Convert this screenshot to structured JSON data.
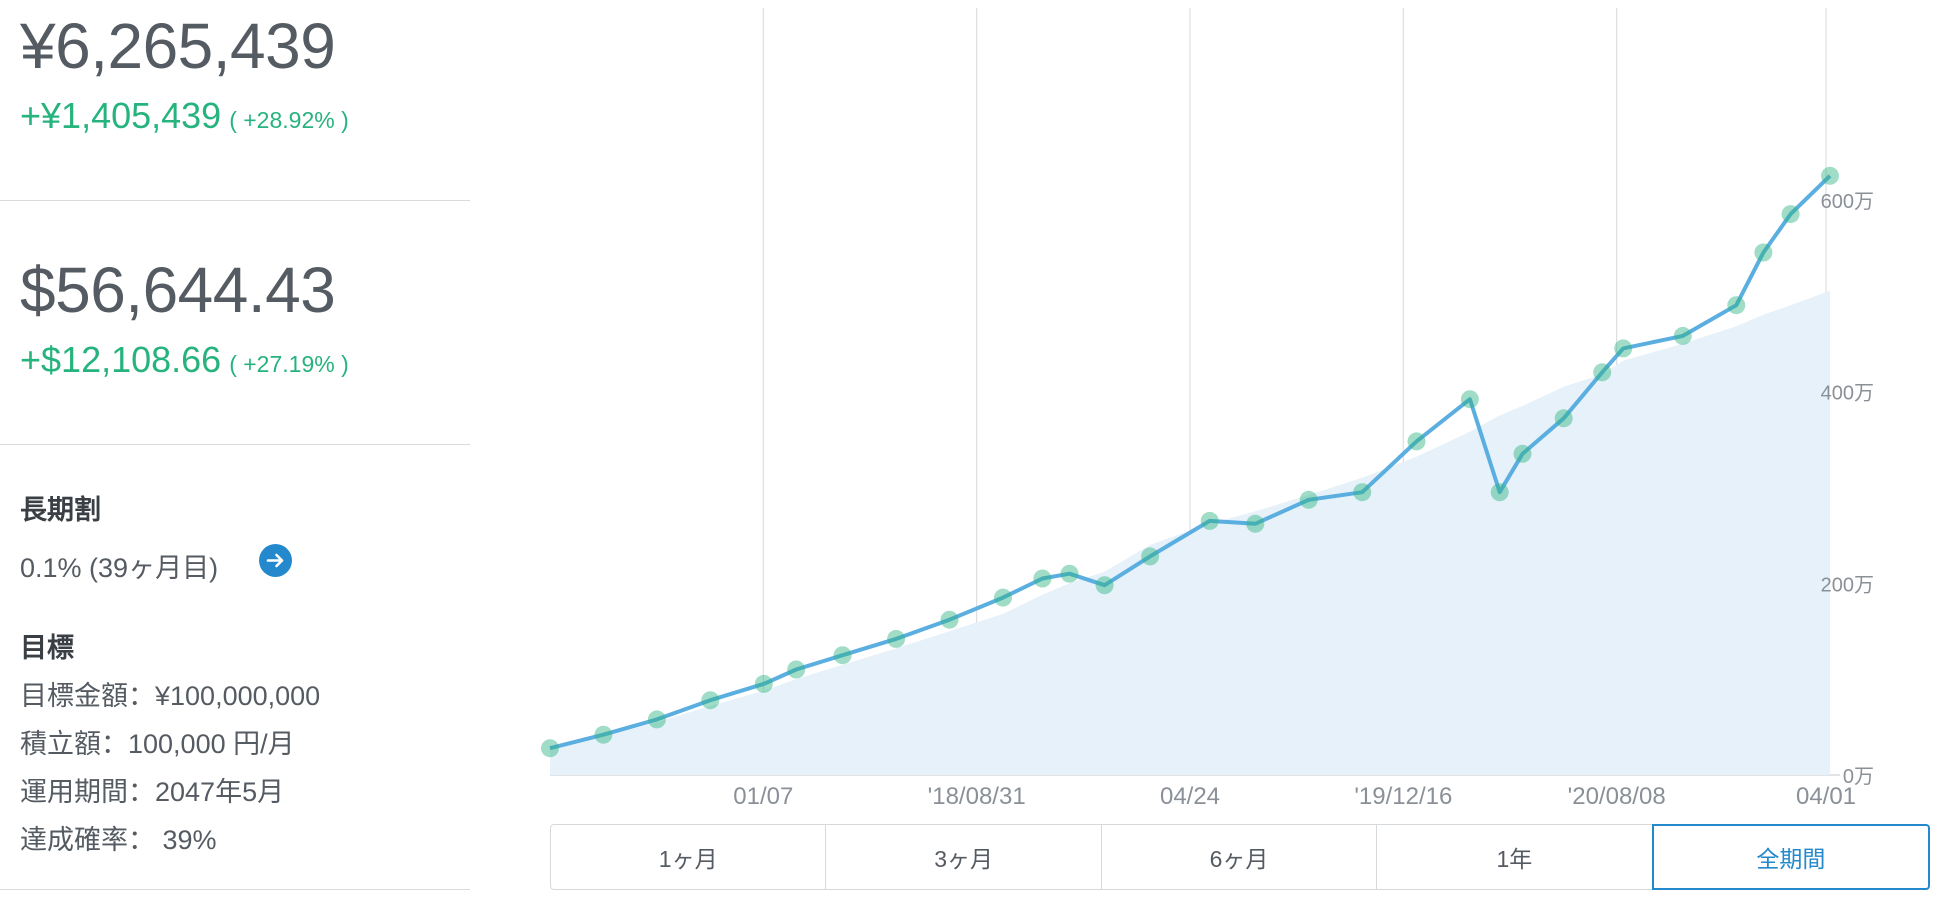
{
  "summary": {
    "jpy": {
      "value": "¥6,265,439",
      "change": "+¥1,405,439",
      "pct": "( +28.92% )"
    },
    "usd": {
      "value": "$56,644.43",
      "change": "+$12,108.66",
      "pct": "( +27.19% )"
    }
  },
  "long_term": {
    "heading": "長期割",
    "rate": "0.1% (39ヶ月目)"
  },
  "goal": {
    "heading": "目標",
    "target_amount": "目標金額：¥100,000,000",
    "monthly_contribution": "積立額：100,000 円/月",
    "period": "運用期間：2047年5月",
    "probability": "達成確率： 39%"
  },
  "tabs": [
    {
      "label": "1ヶ月",
      "active": false
    },
    {
      "label": "3ヶ月",
      "active": false
    },
    {
      "label": "6ヶ月",
      "active": false
    },
    {
      "label": "1年",
      "active": false
    },
    {
      "label": "全期間",
      "active": true
    }
  ],
  "colors": {
    "accent": "#2389cc",
    "gain": "#27b37e",
    "line": "#5aaee0",
    "area": "#e6f1f9",
    "marker": "#2fb380"
  },
  "icons": {
    "navigate": "arrow-right-circle-icon"
  },
  "chart_data": {
    "type": "line",
    "x_tick_labels": [
      "01/07",
      "'18/08/31",
      "04/24",
      "'19/12/16",
      "'20/08/08",
      "04/01"
    ],
    "y_tick_labels": [
      "0万",
      "200万",
      "400万",
      "600万"
    ],
    "y_tick_values": [
      0,
      200,
      400,
      600
    ],
    "ylim": [
      0,
      800
    ],
    "unit": "万",
    "x": [
      "2017-04-01",
      "2017-06-01",
      "2017-08-01",
      "2017-10-01",
      "2017-12-01",
      "2018-01-07",
      "2018-03-01",
      "2018-05-01",
      "2018-07-01",
      "2018-08-31",
      "2018-10-15",
      "2018-11-15",
      "2018-12-25",
      "2019-02-15",
      "2019-04-24",
      "2019-06-15",
      "2019-08-15",
      "2019-10-15",
      "2019-12-16",
      "2020-02-15",
      "2020-03-20",
      "2020-04-15",
      "2020-06-01",
      "2020-07-15",
      "2020-08-08",
      "2020-10-15",
      "2020-12-15",
      "2021-01-15",
      "2021-02-15",
      "2021-04-01"
    ],
    "series": [
      {
        "values": [
          28,
          42,
          58,
          78,
          95,
          110,
          125,
          142,
          162,
          185,
          205,
          210,
          198,
          228,
          265,
          262,
          287,
          295,
          348,
          392,
          295,
          335,
          372,
          420,
          445,
          458,
          490,
          545,
          585,
          625
        ]
      },
      {
        "values": [
          28,
          40,
          55,
          72,
          88,
          100,
          115,
          132,
          150,
          168,
          188,
          200,
          212,
          240,
          262,
          275,
          292,
          310,
          332,
          358,
          375,
          385,
          405,
          418,
          432,
          450,
          468,
          480,
          490,
          505
        ]
      }
    ]
  }
}
